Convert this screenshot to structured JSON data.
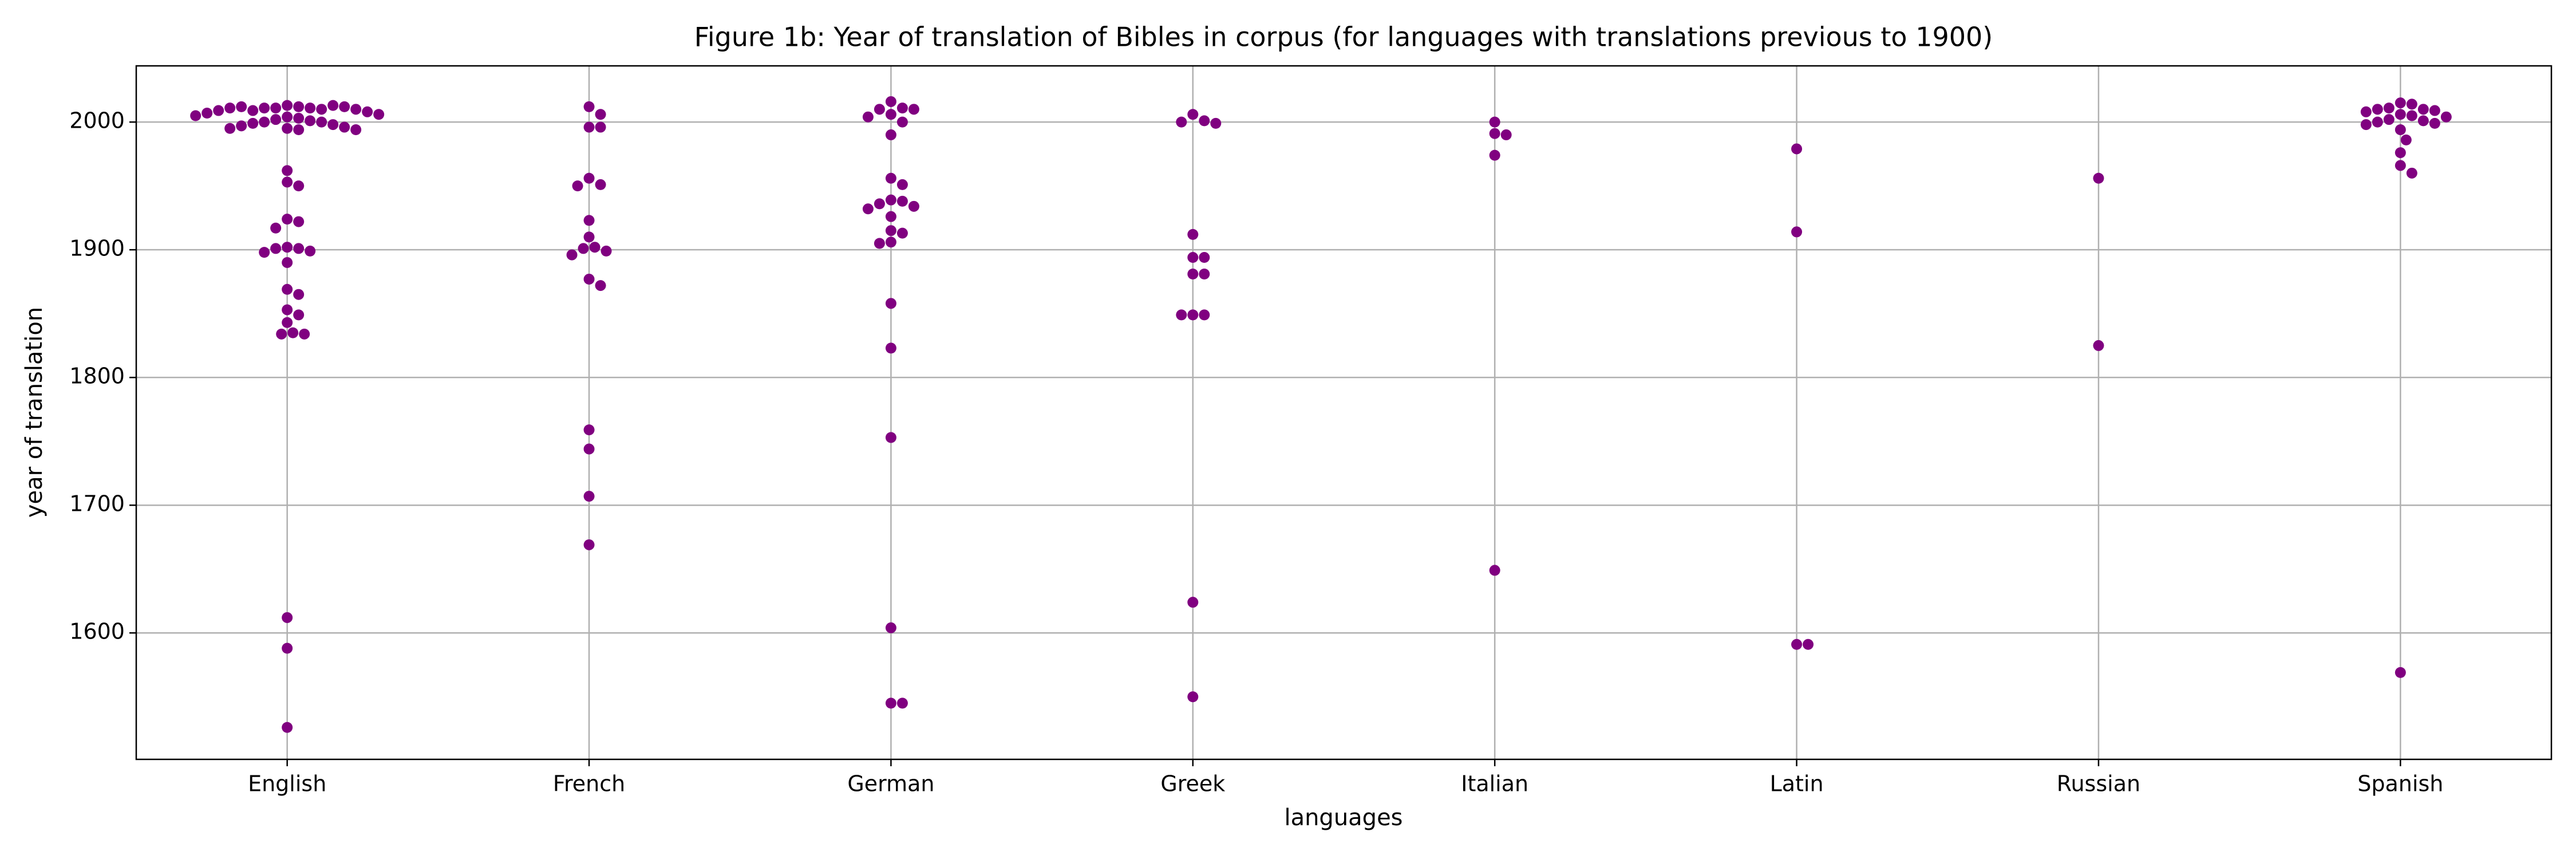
{
  "chart_data": {
    "type": "swarm",
    "title": "Figure 1b: Year of translation of Bibles in corpus (for languages with translations previous to 1900)",
    "x_label": "languages",
    "y_label": "year of translation",
    "categories": [
      "English",
      "French",
      "German",
      "Greek",
      "Italian",
      "Latin",
      "Russian",
      "Spanish"
    ],
    "values": [
      [
        2013,
        2012,
        2011,
        2011,
        2011,
        2010,
        2009,
        2013,
        2012,
        2012,
        2011,
        2010,
        2009,
        2008,
        2007,
        2006,
        2005,
        2004,
        2003,
        2002,
        2001,
        2000,
        2000,
        1999,
        1998,
        1997,
        1996,
        1995,
        1995,
        1994,
        1994,
        1962,
        1953,
        1950,
        1924,
        1922,
        1917,
        1902,
        1901,
        1901,
        1899,
        1898,
        1890,
        1869,
        1865,
        1853,
        1849,
        1843,
        1835,
        1834,
        1834,
        1612,
        1588,
        1526
      ],
      [
        2012,
        2006,
        1996,
        1996,
        1956,
        1951,
        1950,
        1923,
        1910,
        1902,
        1901,
        1899,
        1896,
        1877,
        1872,
        1759,
        1744,
        1707,
        1669
      ],
      [
        2016,
        2011,
        2010,
        2010,
        2006,
        2004,
        2000,
        1990,
        1956,
        1951,
        1939,
        1938,
        1936,
        1934,
        1932,
        1926,
        1915,
        1913,
        1906,
        1905,
        1858,
        1823,
        1753,
        1604,
        1545,
        1545
      ],
      [
        2006,
        2001,
        2000,
        1999,
        1912,
        1894,
        1894,
        1881,
        1881,
        1849,
        1849,
        1849,
        1624,
        1550
      ],
      [
        2000,
        1991,
        1990,
        1974,
        1649
      ],
      [
        1979,
        1914,
        1591,
        1591
      ],
      [
        1956,
        1825
      ],
      [
        2015,
        2014,
        2011,
        2010,
        2010,
        2009,
        2008,
        2006,
        2005,
        2004,
        2002,
        2001,
        2000,
        1999,
        1998,
        1994,
        1986,
        1976,
        1966,
        1960,
        1569
      ]
    ],
    "color": "#800080",
    "ylim": [
      1501,
      2044
    ],
    "yticks": [
      1600,
      1700,
      1800,
      1900,
      2000
    ],
    "grid": true
  }
}
